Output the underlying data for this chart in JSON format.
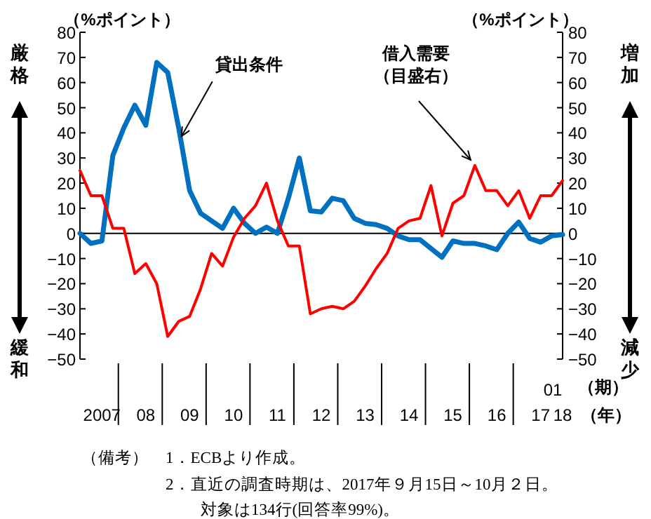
{
  "chart_data": {
    "type": "line",
    "ylabel": "（%ポイント）",
    "y2label": "（%ポイント）",
    "xlabel": "（年）",
    "categories": [
      null,
      null,
      "2007",
      null,
      null,
      null,
      "08",
      null,
      null,
      null,
      "09",
      null,
      null,
      null,
      "10",
      null,
      null,
      null,
      "11",
      null,
      null,
      null,
      "12",
      null,
      null,
      null,
      "13",
      null,
      null,
      null,
      "14",
      null,
      null,
      null,
      "15",
      null,
      null,
      null,
      "16",
      null,
      null,
      null,
      "17",
      null,
      "18"
    ],
    "series": [
      {
        "name": "貸出条件",
        "color": "#0070c0",
        "values": [
          0,
          -4,
          -3,
          31,
          42,
          51,
          43,
          68,
          64,
          42,
          17,
          8,
          5,
          2,
          10,
          4,
          0,
          2.5,
          0,
          14,
          30,
          9,
          8.5,
          14,
          13,
          6,
          4,
          3.5,
          2,
          -1,
          -2.5,
          -2.5,
          -6,
          -9.5,
          -3,
          -4,
          -4,
          -5,
          -6.5,
          0,
          4.5,
          -2,
          -3.5,
          -1,
          -0.5
        ]
      },
      {
        "name": "借入需要（目盛右）",
        "color": "#ff0000",
        "axis": "y2",
        "values": [
          25,
          15,
          15,
          2,
          2,
          -16,
          -12,
          -20,
          -41,
          -35,
          -33,
          -22,
          -8,
          -13,
          -1.5,
          6,
          11,
          20,
          5,
          -5,
          -5,
          -32,
          -30,
          -29,
          -30,
          -27,
          -21,
          -14,
          -8,
          2,
          5,
          6,
          19,
          -1,
          12,
          15,
          27,
          17,
          17,
          11,
          17,
          6,
          15,
          15,
          21
        ]
      }
    ],
    "ylim": [
      -50,
      80
    ],
    "yticks": [
      -50,
      -40,
      -30,
      -20,
      -10,
      0,
      10,
      20,
      30,
      40,
      50,
      60,
      70,
      80
    ],
    "y2lim": [
      -50,
      80
    ],
    "y2ticks": [
      -50,
      -40,
      -30,
      -20,
      -10,
      0,
      10,
      20,
      30,
      40,
      50,
      60,
      70,
      80
    ],
    "ref_lines": [
      {
        "axis": "y",
        "value": 0,
        "color": "#000000"
      }
    ],
    "annotations": [
      "厳格",
      "緩和",
      "増加",
      "減少",
      "01",
      "（期）",
      "（備考）",
      "1．ECBより作成。",
      "2．直近の調査時期は、2017年９月15日～10月２日。",
      "対象は134行(回答率99%)。"
    ],
    "grid": false
  }
}
